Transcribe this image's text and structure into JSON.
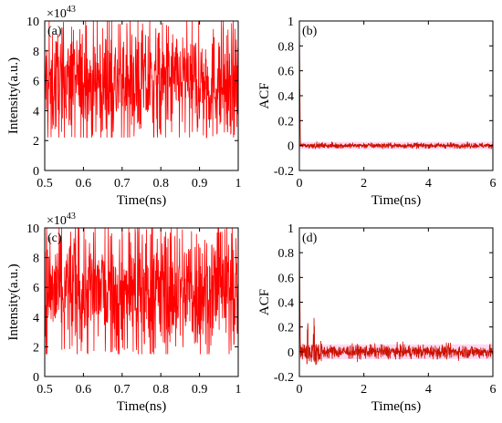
{
  "colors": {
    "trace": "#ff0000",
    "acf_trace": "#cc1100",
    "acf_glow": "#ff66cc",
    "axis": "#000000"
  },
  "chart_data": [
    {
      "type": "line",
      "panel": "(a)",
      "xlabel": "Time(ns)",
      "ylabel": "Intensity(a.u.)",
      "xlim": [
        0.5,
        1
      ],
      "ylim": [
        0,
        10
      ],
      "y_exponent": "×10",
      "y_exponent_power": "43",
      "xticks": [
        "0.5",
        "0.6",
        "0.7",
        "0.8",
        "0.9",
        "1"
      ],
      "yticks": [
        "0",
        "2",
        "4",
        "6",
        "8",
        "10"
      ],
      "series_description": "dense chaotic intensity trace",
      "y_mean": 5.8,
      "y_band": [
        3.0,
        9.0
      ],
      "y_extremes": [
        2.2,
        10.0
      ],
      "grid": false
    },
    {
      "type": "line",
      "panel": "(b)",
      "xlabel": "Time(ns)",
      "ylabel": "ACF",
      "xlim": [
        0,
        6
      ],
      "ylim": [
        -0.2,
        1
      ],
      "xticks": [
        "0",
        "2",
        "4",
        "6"
      ],
      "yticks": [
        "-0.2",
        "0",
        "0.2",
        "0.4",
        "0.6",
        "0.8",
        "1"
      ],
      "peak_at_zero": 1.0,
      "baseline": 0.0,
      "noise_band": [
        -0.02,
        0.02
      ],
      "grid": false
    },
    {
      "type": "line",
      "panel": "(c)",
      "xlabel": "Time(ns)",
      "ylabel": "Intensity(a.u.)",
      "xlim": [
        0.5,
        1
      ],
      "ylim": [
        0,
        10
      ],
      "y_exponent": "×10",
      "y_exponent_power": "43",
      "xticks": [
        "0.5",
        "0.6",
        "0.7",
        "0.8",
        "0.9",
        "1"
      ],
      "yticks": [
        "0",
        "2",
        "4",
        "6",
        "8",
        "10"
      ],
      "series_description": "dense chaotic intensity trace",
      "y_mean": 5.8,
      "y_band": [
        3.0,
        10.0
      ],
      "y_extremes": [
        1.5,
        10.0
      ],
      "grid": false
    },
    {
      "type": "line",
      "panel": "(d)",
      "xlabel": "Time(ns)",
      "ylabel": "ACF",
      "xlim": [
        0,
        6
      ],
      "ylim": [
        -0.2,
        1
      ],
      "xticks": [
        "0",
        "2",
        "4",
        "6"
      ],
      "yticks": [
        "-0.2",
        "0",
        "0.2",
        "0.4",
        "0.6",
        "0.8",
        "1"
      ],
      "peak_at_zero": 1.0,
      "side_peaks": [
        {
          "x": 0.25,
          "y": 0.2
        },
        {
          "x": 0.45,
          "y": 0.2
        }
      ],
      "baseline": 0.0,
      "noise_band": [
        -0.05,
        0.05
      ],
      "grid": false
    }
  ]
}
